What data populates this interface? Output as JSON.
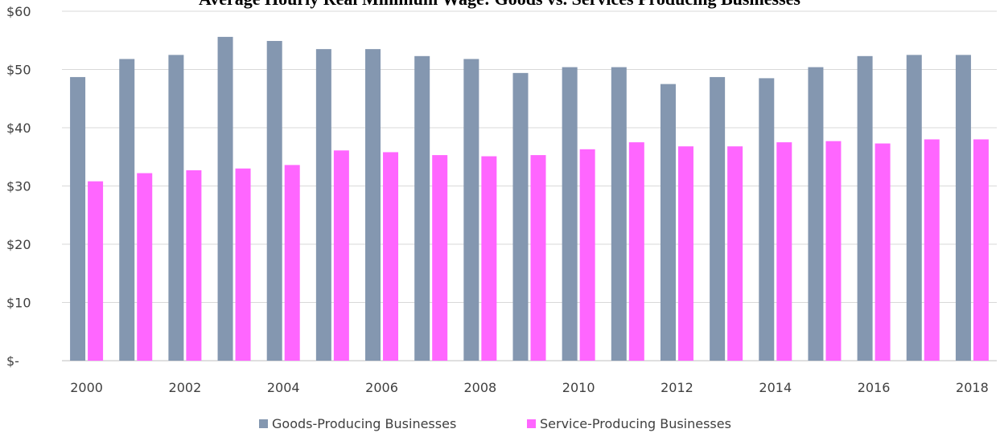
{
  "chart_data": {
    "type": "bar",
    "title": "Average Hourly Real Minimum Wage: Goods vs. Services Producing Businesses",
    "xlabel": "",
    "ylabel": "",
    "categories": [
      "2000",
      "2001",
      "2002",
      "2003",
      "2004",
      "2005",
      "2006",
      "2007",
      "2008",
      "2009",
      "2010",
      "2011",
      "2012",
      "2013",
      "2014",
      "2015",
      "2016",
      "2017",
      "2018"
    ],
    "x_tick_labels": [
      "2000",
      "",
      "2002",
      "",
      "2004",
      "",
      "2006",
      "",
      "2008",
      "",
      "2010",
      "",
      "2012",
      "",
      "2014",
      "",
      "2016",
      "",
      "2018"
    ],
    "y_tick_labels": [
      "$-",
      "$10",
      "$20",
      "$30",
      "$40",
      "$50",
      "$60"
    ],
    "y_ticks": [
      0,
      10,
      20,
      30,
      40,
      50,
      60
    ],
    "ylim": [
      0,
      60
    ],
    "grid": "horizontal",
    "legend": "bottom",
    "series": [
      {
        "name": "Goods-Producing Businesses",
        "color": "#8497b0",
        "values": [
          48.7,
          51.8,
          52.5,
          55.6,
          54.9,
          53.5,
          53.5,
          52.3,
          51.8,
          49.4,
          50.4,
          50.4,
          47.5,
          48.7,
          48.5,
          50.4,
          52.3,
          52.5,
          52.5
        ]
      },
      {
        "name": "Service-Producing Businesses",
        "color": "#ff66ff",
        "values": [
          30.8,
          32.2,
          32.7,
          33.0,
          33.6,
          36.1,
          35.8,
          35.3,
          35.1,
          35.3,
          36.3,
          37.5,
          36.8,
          36.8,
          37.5,
          37.7,
          37.3,
          38.0,
          38.0
        ]
      }
    ]
  }
}
